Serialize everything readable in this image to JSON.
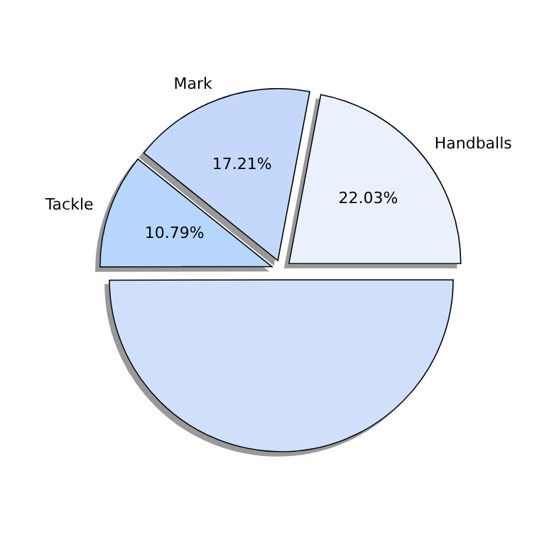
{
  "chart_data": {
    "type": "pie",
    "categories": [
      "Handballs",
      "Mark",
      "Tackle",
      null
    ],
    "values": [
      22.03,
      17.21,
      10.79,
      49.97
    ],
    "colors": [
      "#eaf1fd",
      "#c4d8fc",
      "#b6d6fc",
      "#d0e0fa"
    ],
    "value_labels": [
      "22.03%",
      "17.21%",
      "10.79%",
      null
    ]
  }
}
